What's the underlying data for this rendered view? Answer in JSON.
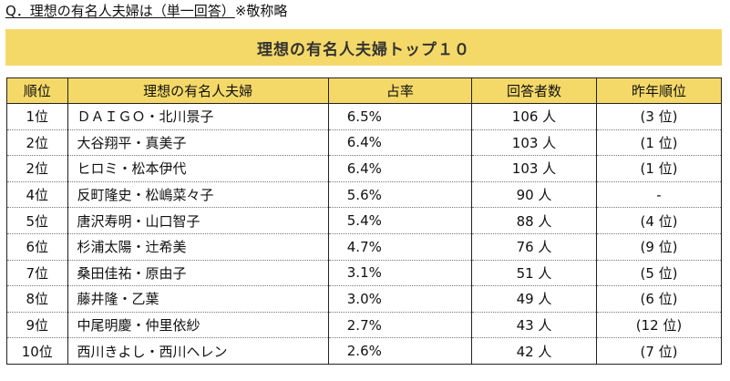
{
  "question": {
    "main": "Q．理想の有名人夫婦は（単一回答）",
    "note": "※敬称略"
  },
  "banner": {
    "title": "理想の有名人夫婦トップ１０"
  },
  "table": {
    "headers": [
      "順位",
      "理想の有名人夫婦",
      "占率",
      "回答者数",
      "昨年順位"
    ],
    "rows": [
      {
        "rank": "1位",
        "name": "ＤＡＩＧＯ・北川景子",
        "rate": "6.5%",
        "count": "106 人",
        "prev": "(3 位)"
      },
      {
        "rank": "2位",
        "name": "大谷翔平・真美子",
        "rate": "6.4%",
        "count": "103 人",
        "prev": "(1 位)"
      },
      {
        "rank": "2位",
        "name": "ヒロミ・松本伊代",
        "rate": "6.4%",
        "count": "103 人",
        "prev": "(1 位)"
      },
      {
        "rank": "4位",
        "name": "反町隆史・松嶋菜々子",
        "rate": "5.6%",
        "count": "90 人",
        "prev": "-"
      },
      {
        "rank": "5位",
        "name": "唐沢寿明・山口智子",
        "rate": "5.4%",
        "count": "88 人",
        "prev": "(4 位)"
      },
      {
        "rank": "6位",
        "name": "杉浦太陽・辻希美",
        "rate": "4.7%",
        "count": "76 人",
        "prev": "(9 位)"
      },
      {
        "rank": "7位",
        "name": "桑田佳祐・原由子",
        "rate": "3.1%",
        "count": "51 人",
        "prev": "(5 位)"
      },
      {
        "rank": "8位",
        "name": "藤井隆・乙葉",
        "rate": "3.0%",
        "count": "49 人",
        "prev": "(6 位)"
      },
      {
        "rank": "9位",
        "name": "中尾明慶・仲里依紗",
        "rate": "2.7%",
        "count": "43 人",
        "prev": "(12 位)"
      },
      {
        "rank": "10位",
        "name": "西川きよし・西川ヘレン",
        "rate": "2.6%",
        "count": "42 人",
        "prev": "(7 位)"
      }
    ]
  },
  "colors": {
    "header_bg": "#f5d968",
    "border": "#222222"
  }
}
